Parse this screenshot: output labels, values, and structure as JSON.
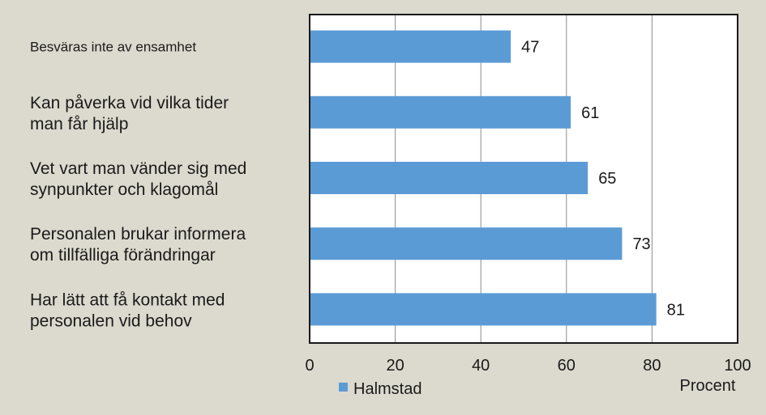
{
  "chart_data": {
    "type": "bar",
    "orientation": "horizontal",
    "categories": [
      "Besväras inte av ensamhet",
      "Kan påverka vid vilka tider man får hjälp",
      "Vet vart man vänder sig med synpunkter och klagomål",
      "Personalen brukar informera om tillfälliga förändringar",
      "Har lätt att få kontakt med personalen vid behov"
    ],
    "category_lines": [
      [
        "Besväras inte av ensamhet"
      ],
      [
        "Kan påverka vid vilka tider",
        "man får hjälp"
      ],
      [
        "Vet vart man vänder sig med",
        "synpunkter och klagomål"
      ],
      [
        "Personalen brukar informera",
        "om tillfälliga förändringar"
      ],
      [
        "Har lätt att få kontakt med",
        "personalen vid behov"
      ]
    ],
    "series": [
      {
        "name": "Halmstad",
        "values": [
          47,
          61,
          65,
          73,
          81
        ],
        "color": "#5b9bd5"
      }
    ],
    "xlim": [
      0,
      100
    ],
    "xticks": [
      0,
      20,
      40,
      60,
      80,
      100
    ],
    "xlabel": "Procent",
    "grid": true,
    "legend": "bottom-left"
  }
}
